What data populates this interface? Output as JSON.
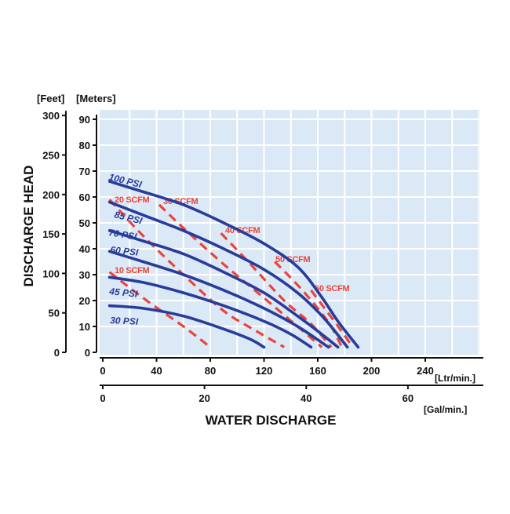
{
  "chart_data": {
    "type": "line",
    "title": "",
    "xlabel": "WATER DISCHARGE",
    "ylabel": "DISCHARGE HEAD",
    "colors": {
      "plot_bg": "#dbe9f6",
      "grid": "#ffffff",
      "psi_curve": "#283c9a",
      "scfm_curve": "#e8453c",
      "axis": "#111111"
    },
    "axes": {
      "x_primary": {
        "unit_label": "[Ltr/min.]",
        "ticks": [
          0,
          40,
          80,
          120,
          160,
          200,
          240
        ],
        "range": [
          0,
          280
        ]
      },
      "x_secondary": {
        "unit_label": "[Gal/min.]",
        "ticks": [
          0,
          20,
          40,
          60
        ],
        "range": [
          0,
          74
        ]
      },
      "y_meters": {
        "unit_label": "[Meters]",
        "ticks": [
          0,
          10,
          20,
          30,
          40,
          50,
          60,
          70,
          80,
          90
        ],
        "range": [
          0,
          95
        ]
      },
      "y_feet": {
        "unit_label": "[Feet]",
        "ticks": [
          0,
          50,
          100,
          150,
          200,
          250,
          300
        ],
        "range": [
          0,
          311.7
        ]
      }
    },
    "psi_series": [
      {
        "name": "100 PSI",
        "points": [
          [
            5,
            66
          ],
          [
            30,
            62
          ],
          [
            60,
            57
          ],
          [
            90,
            50
          ],
          [
            120,
            42
          ],
          [
            145,
            33
          ],
          [
            162,
            22
          ],
          [
            175,
            12
          ],
          [
            190,
            2
          ]
        ]
      },
      {
        "name": "85 PSI",
        "points": [
          [
            5,
            58
          ],
          [
            30,
            53
          ],
          [
            60,
            47
          ],
          [
            90,
            40
          ],
          [
            120,
            32
          ],
          [
            145,
            23
          ],
          [
            165,
            13
          ],
          [
            182,
            2
          ]
        ]
      },
      {
        "name": "70 PSI",
        "points": [
          [
            5,
            47
          ],
          [
            30,
            43
          ],
          [
            60,
            38
          ],
          [
            90,
            31
          ],
          [
            120,
            23
          ],
          [
            145,
            14
          ],
          [
            163,
            7
          ],
          [
            175,
            2
          ]
        ]
      },
      {
        "name": "60 PSI",
        "points": [
          [
            5,
            39
          ],
          [
            30,
            35
          ],
          [
            60,
            30
          ],
          [
            90,
            24
          ],
          [
            120,
            17
          ],
          [
            145,
            10
          ],
          [
            168,
            2
          ]
        ]
      },
      {
        "name": "45 PSI",
        "points": [
          [
            5,
            29
          ],
          [
            30,
            27
          ],
          [
            60,
            23
          ],
          [
            90,
            18
          ],
          [
            120,
            12
          ],
          [
            140,
            7
          ],
          [
            155,
            2
          ]
        ]
      },
      {
        "name": "30 PSI",
        "points": [
          [
            5,
            18
          ],
          [
            30,
            17
          ],
          [
            60,
            14
          ],
          [
            90,
            9
          ],
          [
            110,
            5
          ],
          [
            120,
            2
          ]
        ]
      }
    ],
    "scfm_series": [
      {
        "name": "10 SCFM",
        "points": [
          [
            5,
            31
          ],
          [
            30,
            21
          ],
          [
            60,
            10
          ],
          [
            80,
            2
          ]
        ]
      },
      {
        "name": "20 SCFM",
        "points": [
          [
            5,
            59
          ],
          [
            30,
            45
          ],
          [
            60,
            30
          ],
          [
            90,
            16
          ],
          [
            115,
            8
          ],
          [
            135,
            2
          ]
        ]
      },
      {
        "name": "30 SCFM",
        "points": [
          [
            42,
            57
          ],
          [
            60,
            48
          ],
          [
            90,
            34
          ],
          [
            120,
            21
          ],
          [
            145,
            10
          ],
          [
            163,
            2
          ]
        ]
      },
      {
        "name": "40 SCFM",
        "points": [
          [
            88,
            46
          ],
          [
            110,
            34
          ],
          [
            135,
            20
          ],
          [
            155,
            11
          ],
          [
            170,
            2
          ]
        ]
      },
      {
        "name": "50 SCFM",
        "points": [
          [
            128,
            35
          ],
          [
            145,
            26
          ],
          [
            160,
            17
          ],
          [
            170,
            10
          ],
          [
            178,
            2
          ]
        ]
      },
      {
        "name": "60 SCFM",
        "points": [
          [
            155,
            24
          ],
          [
            168,
            15
          ],
          [
            178,
            8
          ],
          [
            186,
            2
          ]
        ]
      }
    ]
  },
  "labels": {
    "y_unit_feet": "[Feet]",
    "y_unit_meters": "[Meters]"
  }
}
